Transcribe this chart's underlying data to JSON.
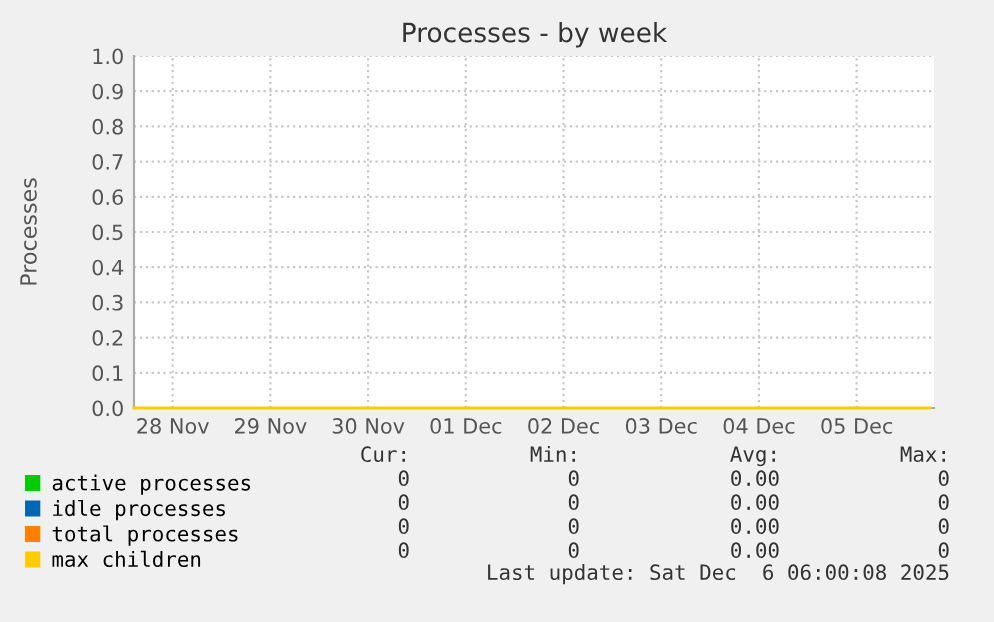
{
  "chart_data": {
    "type": "line",
    "title": "Processes - by week",
    "ylabel": "Processes",
    "x": [
      "2025-11-28T02:30",
      "2025-12-06T06:00"
    ],
    "series": [
      {
        "name": "active processes",
        "color": "#00cc00",
        "values": [
          null,
          null
        ]
      },
      {
        "name": "idle processes",
        "color": "#0066b3",
        "values": [
          null,
          null
        ]
      },
      {
        "name": "total processes",
        "color": "#ff8000",
        "values": [
          null,
          null
        ]
      },
      {
        "name": "max children",
        "color": "#ffcc00",
        "values": [
          0,
          0
        ]
      }
    ],
    "xlim": [
      "2025-11-28T02:30",
      "2025-12-06T07:00"
    ],
    "xticks": [
      {
        "value": "2025-11-28T12:00",
        "label": "28 Nov"
      },
      {
        "value": "2025-11-29T12:00",
        "label": "29 Nov"
      },
      {
        "value": "2025-11-30T12:00",
        "label": "30 Nov"
      },
      {
        "value": "2025-12-01T12:00",
        "label": "01 Dec"
      },
      {
        "value": "2025-12-02T12:00",
        "label": "02 Dec"
      },
      {
        "value": "2025-12-03T12:00",
        "label": "03 Dec"
      },
      {
        "value": "2025-12-04T12:00",
        "label": "04 Dec"
      },
      {
        "value": "2025-12-05T12:00",
        "label": "05 Dec"
      }
    ],
    "ylim": [
      0,
      1
    ],
    "yticks": [
      {
        "value": 0,
        "label": "0.0"
      },
      {
        "value": 0.1,
        "label": "0.1"
      },
      {
        "value": 0.2,
        "label": "0.2"
      },
      {
        "value": 0.3,
        "label": "0.3"
      },
      {
        "value": 0.4,
        "label": "0.4"
      },
      {
        "value": 0.5,
        "label": "0.5"
      },
      {
        "value": 0.6,
        "label": "0.6"
      },
      {
        "value": 0.7,
        "label": "0.7"
      },
      {
        "value": 0.8,
        "label": "0.8"
      },
      {
        "value": 0.9,
        "label": "0.9"
      },
      {
        "value": 1,
        "label": "1.0"
      }
    ],
    "grid": true,
    "legend": "bottom",
    "marker": "none",
    "line_style": "solid",
    "annotations": [
      "Cur:",
      "Min:",
      "Avg:",
      "Max:",
      "0",
      "0",
      "0.00",
      "0",
      "0",
      "0",
      "0.00",
      "0",
      "0",
      "0",
      "0.00",
      "0",
      "0",
      "0",
      "0.00",
      "0",
      "Last update: Sat Dec  6 06:00:08 2025"
    ]
  }
}
